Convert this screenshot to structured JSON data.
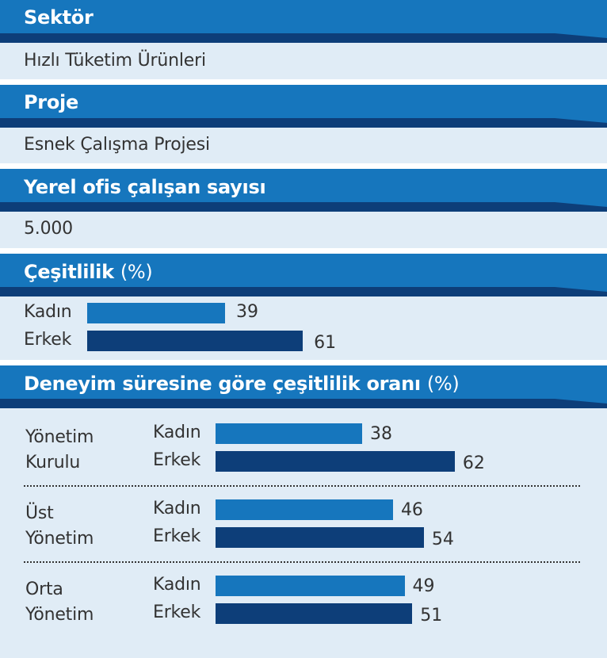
{
  "sections": {
    "sector": {
      "title": "Sektör",
      "value": "Hızlı Tüketim Ürünleri"
    },
    "project": {
      "title": "Proje",
      "value": "Esnek Çalışma Projesi"
    },
    "employees": {
      "title": "Yerel ofis çalışan sayısı",
      "value": "5.000"
    },
    "diversity": {
      "title": "Çeşitlilik",
      "unit": "(%)"
    },
    "experience": {
      "title": "Deneyim süresine göre çeşitlilik oranı",
      "unit": "(%)"
    }
  },
  "colors": {
    "header": "#1676bd",
    "panel": "#e0ecf6",
    "kadin": "#1676bd",
    "erkek": "#0d3e79"
  },
  "chart_data": [
    {
      "type": "bar",
      "orientation": "horizontal",
      "title": "Çeşitlilik (%)",
      "categories": [
        "Kadın",
        "Erkek"
      ],
      "values": [
        39,
        61
      ]
    },
    {
      "type": "bar",
      "orientation": "horizontal",
      "title": "Deneyim süresine göre çeşitlilik oranı (%)",
      "categories": [
        "Yönetim Kurulu",
        "Üst Yönetim",
        "Orta Yönetim"
      ],
      "category_lines": [
        [
          "Yönetim",
          "Kurulu"
        ],
        [
          "Üst",
          "Yönetim"
        ],
        [
          "Orta",
          "Yönetim"
        ]
      ],
      "series": [
        {
          "name": "Kadın",
          "values": [
            38,
            46,
            49
          ]
        },
        {
          "name": "Erkek",
          "values": [
            62,
            54,
            51
          ]
        }
      ]
    }
  ]
}
